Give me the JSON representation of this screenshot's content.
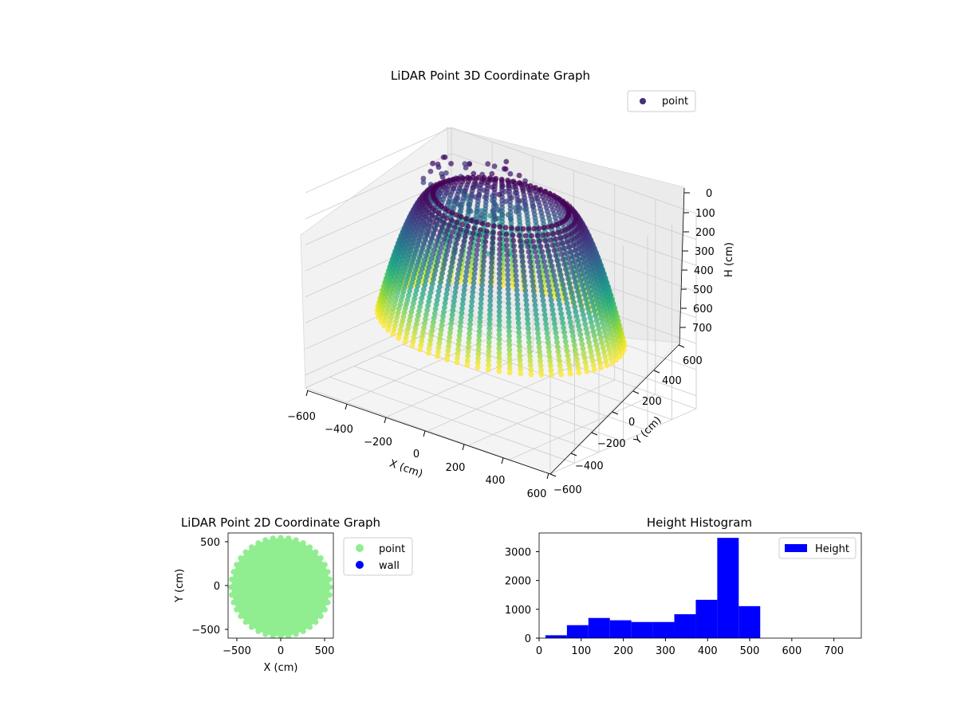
{
  "colors": {
    "viridis_dark": "#440154",
    "viridis_mid": "#21918c",
    "viridis_light": "#b5de2b",
    "point_2d": "#90ee90",
    "wall_2d": "#0000ff",
    "histogram": "#0000ff"
  },
  "chart_data": [
    {
      "type": "scatter",
      "projection": "3d",
      "title": "LiDAR Point 3D Coordinate Graph",
      "xlabel": "X (cm)",
      "ylabel": "Y (cm)",
      "zlabel": "H (cm)",
      "xlim": [
        -600,
        600
      ],
      "ylim": [
        -600,
        600
      ],
      "zlim": [
        750,
        0
      ],
      "z_axis_inverted": true,
      "x_ticks": [
        "−600",
        "−400",
        "−200",
        "0",
        "200",
        "400",
        "600"
      ],
      "y_ticks": [
        "−600",
        "−400",
        "−200",
        "0",
        "200",
        "400",
        "600"
      ],
      "z_ticks": [
        "0",
        "100",
        "200",
        "300",
        "400",
        "500",
        "600",
        "700"
      ],
      "grid": true,
      "legend": {
        "placement": "upper right",
        "entries": [
          "point"
        ]
      },
      "colormap": "viridis",
      "series": [
        {
          "name": "point",
          "shape": "cylindrical wall of radius ~520 cm swept around the scanner, heights 0 to ~480 cm, plus a cluster of scattered points on one side",
          "sample_wall_radius": 520,
          "sample_wall_height_range": [
            0,
            480
          ]
        }
      ]
    },
    {
      "type": "scatter",
      "title": "LiDAR Point 2D Coordinate Graph",
      "xlabel": "X (cm)",
      "ylabel": "Y (cm)",
      "xlim": [
        -600,
        600
      ],
      "ylim": [
        -600,
        600
      ],
      "x_ticks": [
        "−500",
        "0",
        "500"
      ],
      "y_ticks": [
        "500",
        "0",
        "−500"
      ],
      "legend": {
        "placement": "outside right",
        "entries": [
          "point",
          "wall"
        ]
      },
      "series": [
        {
          "name": "point",
          "shape": "filled disk of radius ~560 cm centred near the origin"
        },
        {
          "name": "wall",
          "points": []
        }
      ]
    },
    {
      "type": "bar",
      "subtype": "histogram",
      "title": "Height Histogram",
      "xlabel": "",
      "ylabel": "",
      "xlim": [
        0,
        765
      ],
      "ylim": [
        0,
        3650
      ],
      "x_ticks": [
        "0",
        "100",
        "200",
        "300",
        "400",
        "500",
        "600",
        "700"
      ],
      "y_ticks": [
        "0",
        "1000",
        "2000",
        "3000"
      ],
      "legend": {
        "placement": "upper right",
        "entries": [
          "Height"
        ]
      },
      "bin_edges": [
        15,
        66,
        117,
        168,
        219,
        270,
        321,
        372,
        423,
        474,
        525,
        576,
        627,
        678,
        729
      ],
      "series": [
        {
          "name": "Height",
          "values": [
            100,
            450,
            700,
            620,
            560,
            560,
            830,
            1330,
            3480,
            1110,
            0,
            0,
            0,
            0
          ]
        }
      ]
    }
  ]
}
